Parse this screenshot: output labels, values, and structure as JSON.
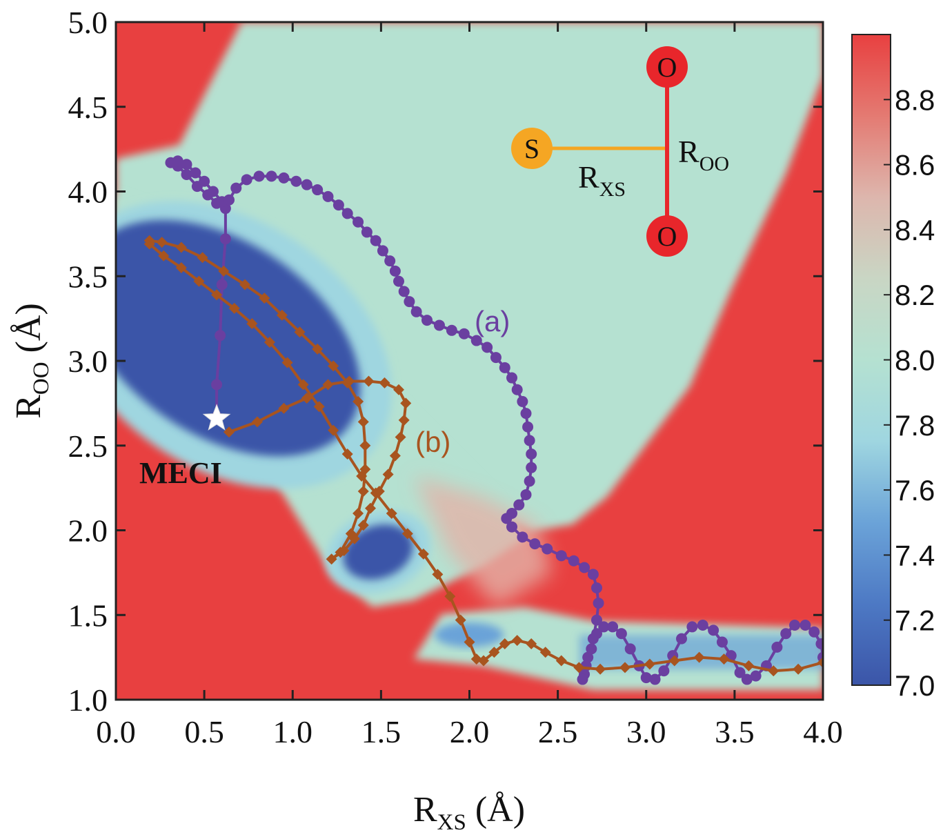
{
  "chart_data": {
    "type": "heatmap",
    "xlabel": {
      "main": "R",
      "sub": "XS",
      "unit": " (Å)"
    },
    "ylabel": {
      "main": "R",
      "sub": "OO",
      "unit": " (Å)"
    },
    "xlim": [
      0.0,
      4.0
    ],
    "ylim": [
      1.0,
      5.0
    ],
    "x_ticks": [
      "0.0",
      "0.5",
      "1.0",
      "1.5",
      "2.0",
      "2.5",
      "3.0",
      "3.5",
      "4.0"
    ],
    "y_ticks": [
      "1.0",
      "1.5",
      "2.0",
      "2.5",
      "3.0",
      "3.5",
      "4.0",
      "4.5",
      "5.0"
    ],
    "colorbar": {
      "range": [
        7.0,
        9.0
      ],
      "ticks": [
        "7.0",
        "7.2",
        "7.4",
        "7.6",
        "7.8",
        "8.0",
        "8.2",
        "8.4",
        "8.6",
        "8.8"
      ],
      "colors": [
        "#3b55a8",
        "#4d79c4",
        "#6ba3d8",
        "#9fd6e0",
        "#b5e1d1",
        "#c9d6c4",
        "#ddb6ad",
        "#e47a72",
        "#e84040"
      ]
    },
    "series": [
      {
        "name": "(a)",
        "color": "#6a3fa0",
        "marker": "circle",
        "points": [
          [
            0.57,
            2.67
          ],
          [
            0.57,
            2.86
          ],
          [
            0.59,
            3.15
          ],
          [
            0.6,
            3.45
          ],
          [
            0.62,
            3.72
          ],
          [
            0.62,
            3.9
          ],
          [
            0.57,
            3.93
          ],
          [
            0.52,
            3.98
          ],
          [
            0.46,
            4.03
          ],
          [
            0.4,
            4.1
          ],
          [
            0.35,
            4.15
          ],
          [
            0.31,
            4.17
          ],
          [
            0.35,
            4.18
          ],
          [
            0.4,
            4.16
          ],
          [
            0.45,
            4.11
          ],
          [
            0.5,
            4.06
          ],
          [
            0.55,
            4.0
          ],
          [
            0.6,
            3.94
          ],
          [
            0.64,
            3.95
          ],
          [
            0.68,
            4.02
          ],
          [
            0.74,
            4.07
          ],
          [
            0.81,
            4.09
          ],
          [
            0.88,
            4.09
          ],
          [
            0.95,
            4.08
          ],
          [
            1.02,
            4.06
          ],
          [
            1.08,
            4.04
          ],
          [
            1.14,
            4.01
          ],
          [
            1.2,
            3.97
          ],
          [
            1.26,
            3.92
          ],
          [
            1.31,
            3.87
          ],
          [
            1.37,
            3.82
          ],
          [
            1.42,
            3.76
          ],
          [
            1.47,
            3.71
          ],
          [
            1.51,
            3.65
          ],
          [
            1.55,
            3.59
          ],
          [
            1.58,
            3.53
          ],
          [
            1.6,
            3.47
          ],
          [
            1.63,
            3.41
          ],
          [
            1.66,
            3.35
          ],
          [
            1.7,
            3.29
          ],
          [
            1.76,
            3.24
          ],
          [
            1.83,
            3.21
          ],
          [
            1.9,
            3.18
          ],
          [
            1.97,
            3.16
          ],
          [
            2.04,
            3.12
          ],
          [
            2.1,
            3.08
          ],
          [
            2.15,
            3.02
          ],
          [
            2.2,
            2.96
          ],
          [
            2.24,
            2.9
          ],
          [
            2.27,
            2.83
          ],
          [
            2.3,
            2.76
          ],
          [
            2.32,
            2.69
          ],
          [
            2.33,
            2.61
          ],
          [
            2.34,
            2.53
          ],
          [
            2.35,
            2.45
          ],
          [
            2.35,
            2.37
          ],
          [
            2.34,
            2.29
          ],
          [
            2.32,
            2.21
          ],
          [
            2.28,
            2.15
          ],
          [
            2.24,
            2.1
          ],
          [
            2.21,
            2.07
          ],
          [
            2.24,
            2.02
          ],
          [
            2.3,
            1.96
          ],
          [
            2.37,
            1.92
          ],
          [
            2.44,
            1.89
          ],
          [
            2.52,
            1.85
          ],
          [
            2.59,
            1.82
          ],
          [
            2.65,
            1.78
          ],
          [
            2.7,
            1.74
          ],
          [
            2.72,
            1.66
          ],
          [
            2.73,
            1.57
          ],
          [
            2.72,
            1.47
          ],
          [
            2.7,
            1.36
          ],
          [
            2.67,
            1.25
          ],
          [
            2.65,
            1.15
          ],
          [
            2.64,
            1.12
          ],
          [
            2.66,
            1.2
          ],
          [
            2.69,
            1.3
          ],
          [
            2.72,
            1.39
          ],
          [
            2.76,
            1.43
          ],
          [
            2.81,
            1.43
          ],
          [
            2.86,
            1.39
          ],
          [
            2.91,
            1.3
          ],
          [
            2.96,
            1.2
          ],
          [
            3.0,
            1.13
          ],
          [
            3.05,
            1.12
          ],
          [
            3.1,
            1.17
          ],
          [
            3.15,
            1.26
          ],
          [
            3.2,
            1.36
          ],
          [
            3.26,
            1.43
          ],
          [
            3.32,
            1.44
          ],
          [
            3.38,
            1.41
          ],
          [
            3.43,
            1.34
          ],
          [
            3.48,
            1.26
          ],
          [
            3.53,
            1.16
          ],
          [
            3.57,
            1.12
          ],
          [
            3.62,
            1.14
          ],
          [
            3.68,
            1.2
          ],
          [
            3.74,
            1.31
          ],
          [
            3.79,
            1.39
          ],
          [
            3.84,
            1.44
          ],
          [
            3.9,
            1.44
          ],
          [
            3.95,
            1.4
          ],
          [
            3.99,
            1.33
          ],
          [
            4.0,
            1.25
          ]
        ]
      },
      {
        "name": "(b)",
        "color": "#a8541f",
        "marker": "diamond",
        "points": [
          [
            0.64,
            2.58
          ],
          [
            0.8,
            2.64
          ],
          [
            0.95,
            2.72
          ],
          [
            1.08,
            2.78
          ],
          [
            1.2,
            2.86
          ],
          [
            1.32,
            2.88
          ],
          [
            1.43,
            2.88
          ],
          [
            1.52,
            2.87
          ],
          [
            1.6,
            2.83
          ],
          [
            1.64,
            2.75
          ],
          [
            1.63,
            2.65
          ],
          [
            1.61,
            2.55
          ],
          [
            1.58,
            2.44
          ],
          [
            1.54,
            2.33
          ],
          [
            1.49,
            2.23
          ],
          [
            1.44,
            2.13
          ],
          [
            1.4,
            2.03
          ],
          [
            1.35,
            1.95
          ],
          [
            1.29,
            1.88
          ],
          [
            1.22,
            1.83
          ],
          [
            1.27,
            1.87
          ],
          [
            1.33,
            1.98
          ],
          [
            1.37,
            2.1
          ],
          [
            1.4,
            2.23
          ],
          [
            1.41,
            2.36
          ],
          [
            1.41,
            2.5
          ],
          [
            1.4,
            2.64
          ],
          [
            1.37,
            2.76
          ],
          [
            1.31,
            2.87
          ],
          [
            1.23,
            2.97
          ],
          [
            1.14,
            3.07
          ],
          [
            1.04,
            3.17
          ],
          [
            0.94,
            3.27
          ],
          [
            0.84,
            3.37
          ],
          [
            0.73,
            3.45
          ],
          [
            0.61,
            3.53
          ],
          [
            0.49,
            3.61
          ],
          [
            0.37,
            3.67
          ],
          [
            0.26,
            3.7
          ],
          [
            0.19,
            3.71
          ],
          [
            0.19,
            3.69
          ],
          [
            0.27,
            3.62
          ],
          [
            0.37,
            3.55
          ],
          [
            0.47,
            3.47
          ],
          [
            0.57,
            3.39
          ],
          [
            0.67,
            3.31
          ],
          [
            0.77,
            3.22
          ],
          [
            0.87,
            3.11
          ],
          [
            0.97,
            2.99
          ],
          [
            1.06,
            2.86
          ],
          [
            1.15,
            2.73
          ],
          [
            1.23,
            2.59
          ],
          [
            1.31,
            2.45
          ],
          [
            1.39,
            2.32
          ],
          [
            1.47,
            2.22
          ],
          [
            1.56,
            2.1
          ],
          [
            1.65,
            1.98
          ],
          [
            1.74,
            1.86
          ],
          [
            1.82,
            1.74
          ],
          [
            1.89,
            1.61
          ],
          [
            1.95,
            1.47
          ],
          [
            2.0,
            1.34
          ],
          [
            2.04,
            1.24
          ],
          [
            2.08,
            1.23
          ],
          [
            2.14,
            1.28
          ],
          [
            2.2,
            1.33
          ],
          [
            2.27,
            1.35
          ],
          [
            2.35,
            1.33
          ],
          [
            2.43,
            1.28
          ],
          [
            2.52,
            1.23
          ],
          [
            2.62,
            1.19
          ],
          [
            2.74,
            1.18
          ],
          [
            2.88,
            1.19
          ],
          [
            3.02,
            1.21
          ],
          [
            3.16,
            1.23
          ],
          [
            3.3,
            1.25
          ],
          [
            3.44,
            1.24
          ],
          [
            3.58,
            1.2
          ],
          [
            3.72,
            1.17
          ],
          [
            3.86,
            1.18
          ],
          [
            4.0,
            1.22
          ]
        ]
      }
    ],
    "meci": {
      "label": "MECI",
      "point": [
        0.57,
        2.66
      ]
    },
    "molecule": {
      "atoms": [
        {
          "symbol": "S",
          "color": "#f5a623"
        },
        {
          "symbol": "O",
          "color": "#e8262b"
        },
        {
          "symbol": "O",
          "color": "#e8262b"
        }
      ],
      "r_xs": {
        "main": "R",
        "sub": "XS"
      },
      "r_oo": {
        "main": "R",
        "sub": "OO"
      },
      "bond_colors": {
        "xs": "#f5a623",
        "oo": "#e8262b"
      }
    }
  }
}
